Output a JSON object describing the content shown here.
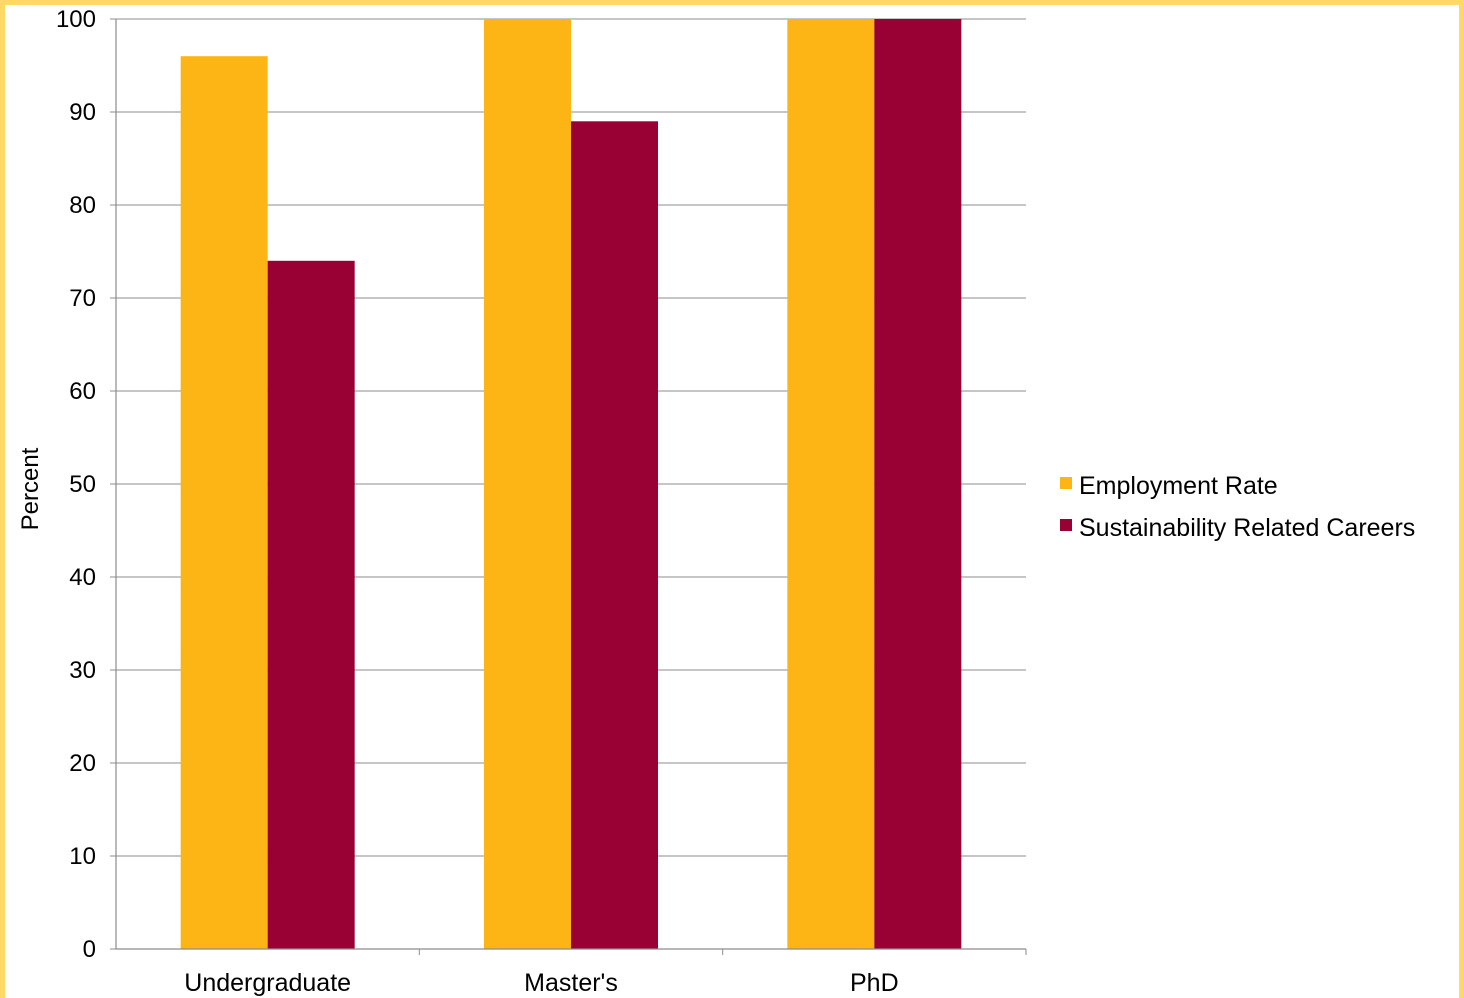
{
  "chart_data": {
    "type": "bar",
    "categories": [
      "Undergraduate",
      "Master's",
      "PhD"
    ],
    "series": [
      {
        "name": "Employment Rate",
        "color": "#fdb515",
        "values": [
          96,
          100,
          100
        ]
      },
      {
        "name": "Sustainability Related Careers",
        "color": "#990033",
        "values": [
          74,
          89,
          100
        ]
      }
    ],
    "ylabel": "Percent",
    "xlabel": "",
    "ylim": [
      0,
      100
    ],
    "yticks": [
      "0",
      "10",
      "20",
      "30",
      "40",
      "50",
      "60",
      "70",
      "80",
      "90",
      "100"
    ],
    "grid": true,
    "legend": "right"
  }
}
